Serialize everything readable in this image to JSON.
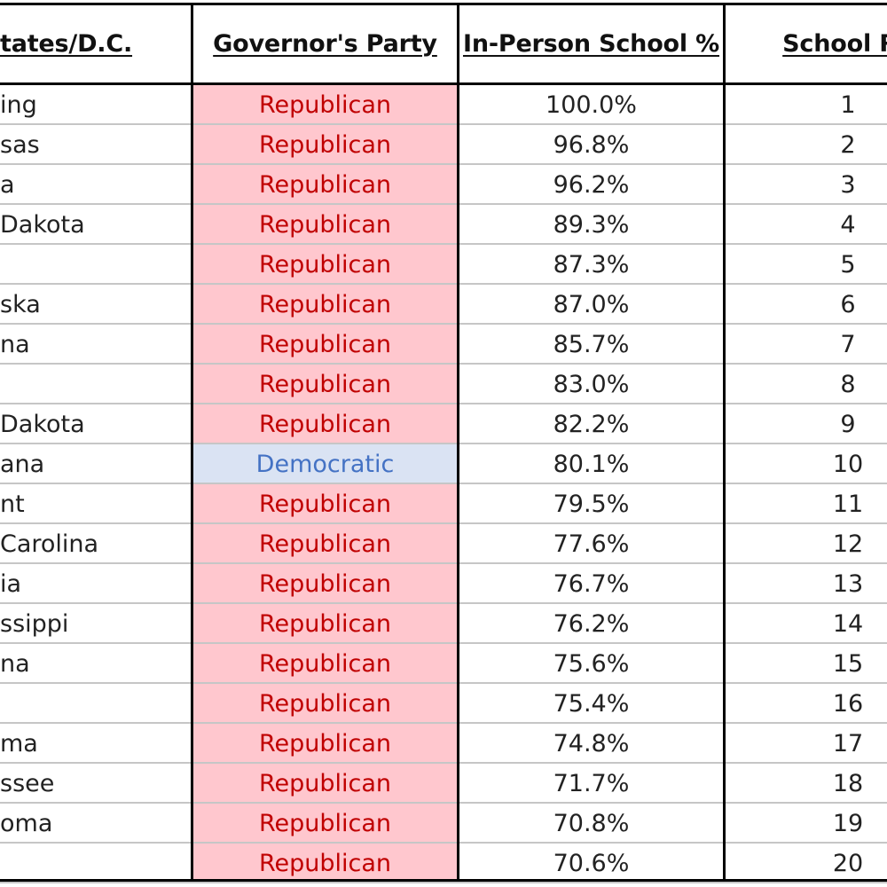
{
  "table": {
    "headers": {
      "state": "tates/D.C.",
      "party": "Governor's Party",
      "pct": "In-Person School %",
      "rank": "School Ra"
    },
    "colors": {
      "republican_bg": "#ffc7ce",
      "republican_text": "#c00000",
      "democratic_bg": "#dae3f3",
      "democratic_text": "#4472c4"
    },
    "rows": [
      {
        "state": "ing",
        "party": "Republican",
        "pct": "100.0%",
        "rank": "1"
      },
      {
        "state": "sas",
        "party": "Republican",
        "pct": "96.8%",
        "rank": "2"
      },
      {
        "state": "a",
        "party": "Republican",
        "pct": "96.2%",
        "rank": "3"
      },
      {
        "state": "Dakota",
        "party": "Republican",
        "pct": "89.3%",
        "rank": "4"
      },
      {
        "state": "",
        "party": "Republican",
        "pct": "87.3%",
        "rank": "5"
      },
      {
        "state": "ska",
        "party": "Republican",
        "pct": "87.0%",
        "rank": "6"
      },
      {
        "state": "na",
        "party": "Republican",
        "pct": "85.7%",
        "rank": "7"
      },
      {
        "state": "",
        "party": "Republican",
        "pct": "83.0%",
        "rank": "8"
      },
      {
        "state": "Dakota",
        "party": "Republican",
        "pct": "82.2%",
        "rank": "9"
      },
      {
        "state": "ana",
        "party": "Democratic",
        "pct": "80.1%",
        "rank": "10"
      },
      {
        "state": "nt",
        "party": "Republican",
        "pct": "79.5%",
        "rank": "11"
      },
      {
        "state": "Carolina",
        "party": "Republican",
        "pct": "77.6%",
        "rank": "12"
      },
      {
        "state": "ia",
        "party": "Republican",
        "pct": "76.7%",
        "rank": "13"
      },
      {
        "state": "ssippi",
        "party": "Republican",
        "pct": "76.2%",
        "rank": "14"
      },
      {
        "state": "na",
        "party": "Republican",
        "pct": "75.6%",
        "rank": "15"
      },
      {
        "state": "",
        "party": "Republican",
        "pct": "75.4%",
        "rank": "16"
      },
      {
        "state": "ma",
        "party": "Republican",
        "pct": "74.8%",
        "rank": "17"
      },
      {
        "state": "ssee",
        "party": "Republican",
        "pct": "71.7%",
        "rank": "18"
      },
      {
        "state": "oma",
        "party": "Republican",
        "pct": "70.8%",
        "rank": "19"
      },
      {
        "state": "",
        "party": "Republican",
        "pct": "70.6%",
        "rank": "20"
      }
    ]
  }
}
